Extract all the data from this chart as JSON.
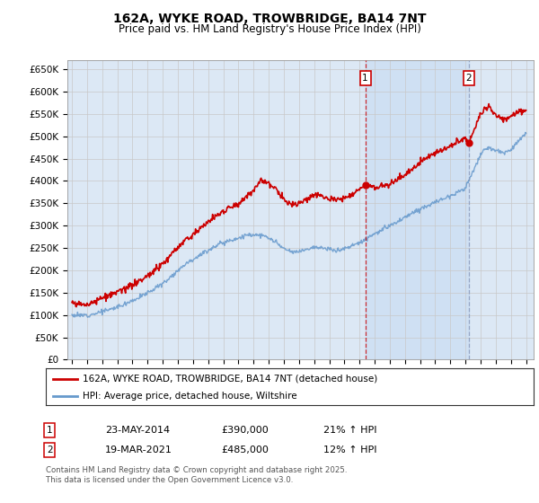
{
  "title": "162A, WYKE ROAD, TROWBRIDGE, BA14 7NT",
  "subtitle": "Price paid vs. HM Land Registry's House Price Index (HPI)",
  "yticks": [
    0,
    50000,
    100000,
    150000,
    200000,
    250000,
    300000,
    350000,
    400000,
    450000,
    500000,
    550000,
    600000,
    650000
  ],
  "ylim": [
    0,
    670000
  ],
  "background_color": "#ffffff",
  "grid_color": "#c8c8c8",
  "plot_bg": "#dce8f5",
  "red_line_color": "#cc0000",
  "blue_line_color": "#6699cc",
  "sale1_date": "23-MAY-2014",
  "sale1_price": 390000,
  "sale1_hpi": "21% ↑ HPI",
  "sale2_date": "19-MAR-2021",
  "sale2_price": 485000,
  "sale2_hpi": "12% ↑ HPI",
  "legend_label1": "162A, WYKE ROAD, TROWBRIDGE, BA14 7NT (detached house)",
  "legend_label2": "HPI: Average price, detached house, Wiltshire",
  "footnote": "Contains HM Land Registry data © Crown copyright and database right 2025.\nThis data is licensed under the Open Government Licence v3.0.",
  "xstart_year": 1995,
  "xend_year": 2025,
  "sale1_year_dec": 2014.38,
  "sale2_year_dec": 2021.21,
  "hpi_anchors_x": [
    1995.0,
    1995.5,
    1996.0,
    1996.5,
    1997.0,
    1997.5,
    1998.0,
    1998.5,
    1999.0,
    1999.5,
    2000.0,
    2000.5,
    2001.0,
    2001.5,
    2002.0,
    2002.5,
    2003.0,
    2003.5,
    2004.0,
    2004.5,
    2005.0,
    2005.5,
    2006.0,
    2006.5,
    2007.0,
    2007.5,
    2008.0,
    2008.5,
    2009.0,
    2009.5,
    2010.0,
    2010.5,
    2011.0,
    2011.5,
    2012.0,
    2012.5,
    2013.0,
    2013.5,
    2014.0,
    2014.5,
    2015.0,
    2015.5,
    2016.0,
    2016.5,
    2017.0,
    2017.5,
    2018.0,
    2018.5,
    2019.0,
    2019.5,
    2020.0,
    2020.5,
    2021.0,
    2021.5,
    2022.0,
    2022.5,
    2023.0,
    2023.5,
    2024.0,
    2024.5,
    2025.0
  ],
  "hpi_anchors_y": [
    100000,
    99000,
    100000,
    103000,
    108000,
    112000,
    118000,
    125000,
    133000,
    140000,
    150000,
    160000,
    170000,
    185000,
    200000,
    215000,
    225000,
    235000,
    245000,
    255000,
    262000,
    268000,
    272000,
    278000,
    280000,
    278000,
    272000,
    262000,
    248000,
    240000,
    242000,
    248000,
    252000,
    250000,
    246000,
    245000,
    248000,
    255000,
    262000,
    272000,
    282000,
    290000,
    300000,
    308000,
    318000,
    328000,
    338000,
    345000,
    352000,
    360000,
    368000,
    375000,
    385000,
    420000,
    460000,
    475000,
    468000,
    462000,
    470000,
    490000,
    505000
  ],
  "red_anchors_x": [
    1995.0,
    1995.5,
    1996.0,
    1996.5,
    1997.0,
    1997.5,
    1998.0,
    1998.5,
    1999.0,
    1999.5,
    2000.0,
    2000.5,
    2001.0,
    2001.5,
    2002.0,
    2002.5,
    2003.0,
    2003.5,
    2004.0,
    2004.5,
    2005.0,
    2005.5,
    2006.0,
    2006.5,
    2007.0,
    2007.5,
    2008.0,
    2008.5,
    2009.0,
    2009.5,
    2010.0,
    2010.5,
    2011.0,
    2011.5,
    2012.0,
    2012.5,
    2013.0,
    2013.5,
    2014.0,
    2014.38,
    2014.5,
    2015.0,
    2015.5,
    2016.0,
    2016.5,
    2017.0,
    2017.5,
    2018.0,
    2018.5,
    2019.0,
    2019.5,
    2020.0,
    2020.5,
    2021.0,
    2021.21,
    2021.5,
    2022.0,
    2022.5,
    2023.0,
    2023.5,
    2024.0,
    2024.5,
    2025.0
  ],
  "red_anchors_y": [
    125000,
    123000,
    125000,
    130000,
    138000,
    143000,
    150000,
    158000,
    167000,
    175000,
    188000,
    200000,
    215000,
    232000,
    250000,
    268000,
    280000,
    295000,
    308000,
    322000,
    332000,
    342000,
    350000,
    363000,
    378000,
    405000,
    395000,
    380000,
    358000,
    345000,
    350000,
    358000,
    368000,
    368000,
    360000,
    358000,
    362000,
    372000,
    382000,
    390000,
    388000,
    385000,
    390000,
    395000,
    403000,
    415000,
    428000,
    442000,
    453000,
    462000,
    470000,
    478000,
    488000,
    496000,
    485000,
    510000,
    550000,
    568000,
    548000,
    538000,
    545000,
    555000,
    560000
  ]
}
